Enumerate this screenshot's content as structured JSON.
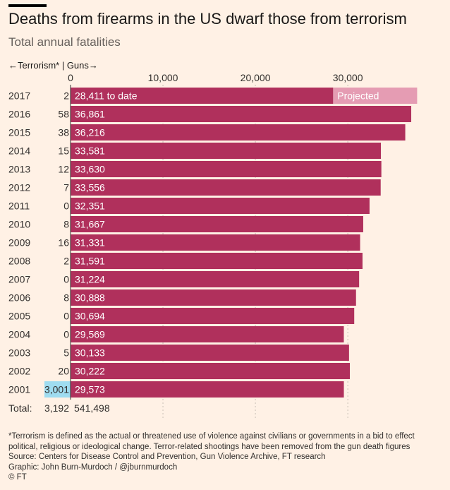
{
  "title": "Deaths from firearms in the US dwarf those from terrorism",
  "subtitle": "Total annual fatalities",
  "colors": {
    "guns": "#b0305c",
    "projected": "#e59cb3",
    "terror_highlight": "#9fdcf0",
    "background": "#fff1e5",
    "text": "#33302e"
  },
  "chart_data": {
    "type": "bar",
    "orientation": "horizontal",
    "legend": "←Terrorism* | Guns→",
    "x_ticks": [
      0,
      10000,
      20000,
      30000
    ],
    "x_tick_labels": [
      "0",
      "10,000",
      "20,000",
      "30,000"
    ],
    "xlim": [
      0,
      38500
    ],
    "categories": [
      "2017",
      "2016",
      "2015",
      "2014",
      "2013",
      "2012",
      "2011",
      "2010",
      "2009",
      "2008",
      "2007",
      "2006",
      "2005",
      "2004",
      "2003",
      "2002",
      "2001"
    ],
    "series": [
      {
        "name": "Terrorism",
        "values": [
          2,
          58,
          38,
          15,
          12,
          7,
          0,
          8,
          16,
          2,
          0,
          8,
          0,
          0,
          5,
          20,
          3001
        ],
        "labels": [
          "2",
          "58",
          "38",
          "15",
          "12",
          "7",
          "0",
          "8",
          "16",
          "2",
          "0",
          "8",
          "0",
          "0",
          "5",
          "20",
          "3,001"
        ]
      },
      {
        "name": "Guns",
        "values": [
          37500,
          36861,
          36216,
          33581,
          33630,
          33556,
          32351,
          31667,
          31331,
          31591,
          31224,
          30888,
          30694,
          29569,
          30133,
          30222,
          29573
        ],
        "labels": [
          "28,411 to date",
          "36,861",
          "36,216",
          "33,581",
          "33,630",
          "33,556",
          "32,351",
          "31,667",
          "31,331",
          "31,591",
          "31,224",
          "30,888",
          "30,694",
          "29,569",
          "30,133",
          "30,222",
          "29,573"
        ]
      }
    ],
    "to_date_2017": 28411,
    "projected_label": "Projected",
    "total_label": "Total:",
    "total_terrorism": "3,192",
    "total_guns": "541,498"
  },
  "notes": {
    "footnote_1": "*Terrorism is defined as the actual or threatened use of violence against civilians or governments in a bid to effect",
    "footnote_2": "political, religious or ideological change. Terror-related shootings have been removed from the gun death figures",
    "source": "Source: Centers for Disease Control and Prevention, Gun Violence Archive, FT research",
    "graphic": "Graphic: John Burn-Murdoch / @jburnmurdoch",
    "copyright": "© FT"
  }
}
